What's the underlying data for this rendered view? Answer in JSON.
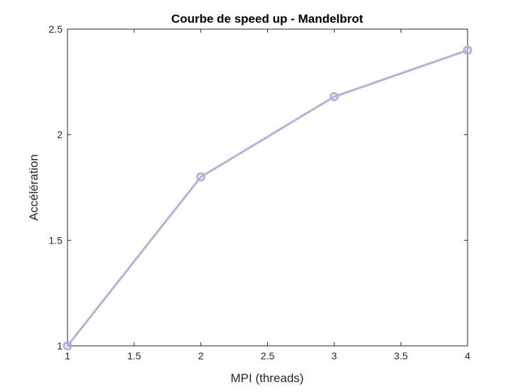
{
  "chart_data": {
    "type": "line",
    "title": "Courbe de speed up - Mandelbrot",
    "xlabel": "MPI (threads)",
    "ylabel": "Accélération",
    "xlim": [
      1,
      4
    ],
    "ylim": [
      1,
      2.5
    ],
    "x_ticks": [
      "1",
      "1.5",
      "2",
      "2.5",
      "3",
      "3.5",
      "4"
    ],
    "y_ticks": [
      "1",
      "1.5",
      "2",
      "2.5"
    ],
    "x_tick_values": [
      1,
      1.5,
      2,
      2.5,
      3,
      3.5,
      4
    ],
    "y_tick_values": [
      1,
      1.5,
      2,
      2.5
    ],
    "grid": false,
    "marker": "circle",
    "line_color": "#b4b0e4",
    "series": [
      {
        "x": [
          1,
          2,
          3,
          4
        ],
        "values": [
          1.0,
          1.8,
          2.18,
          2.4
        ]
      }
    ]
  }
}
